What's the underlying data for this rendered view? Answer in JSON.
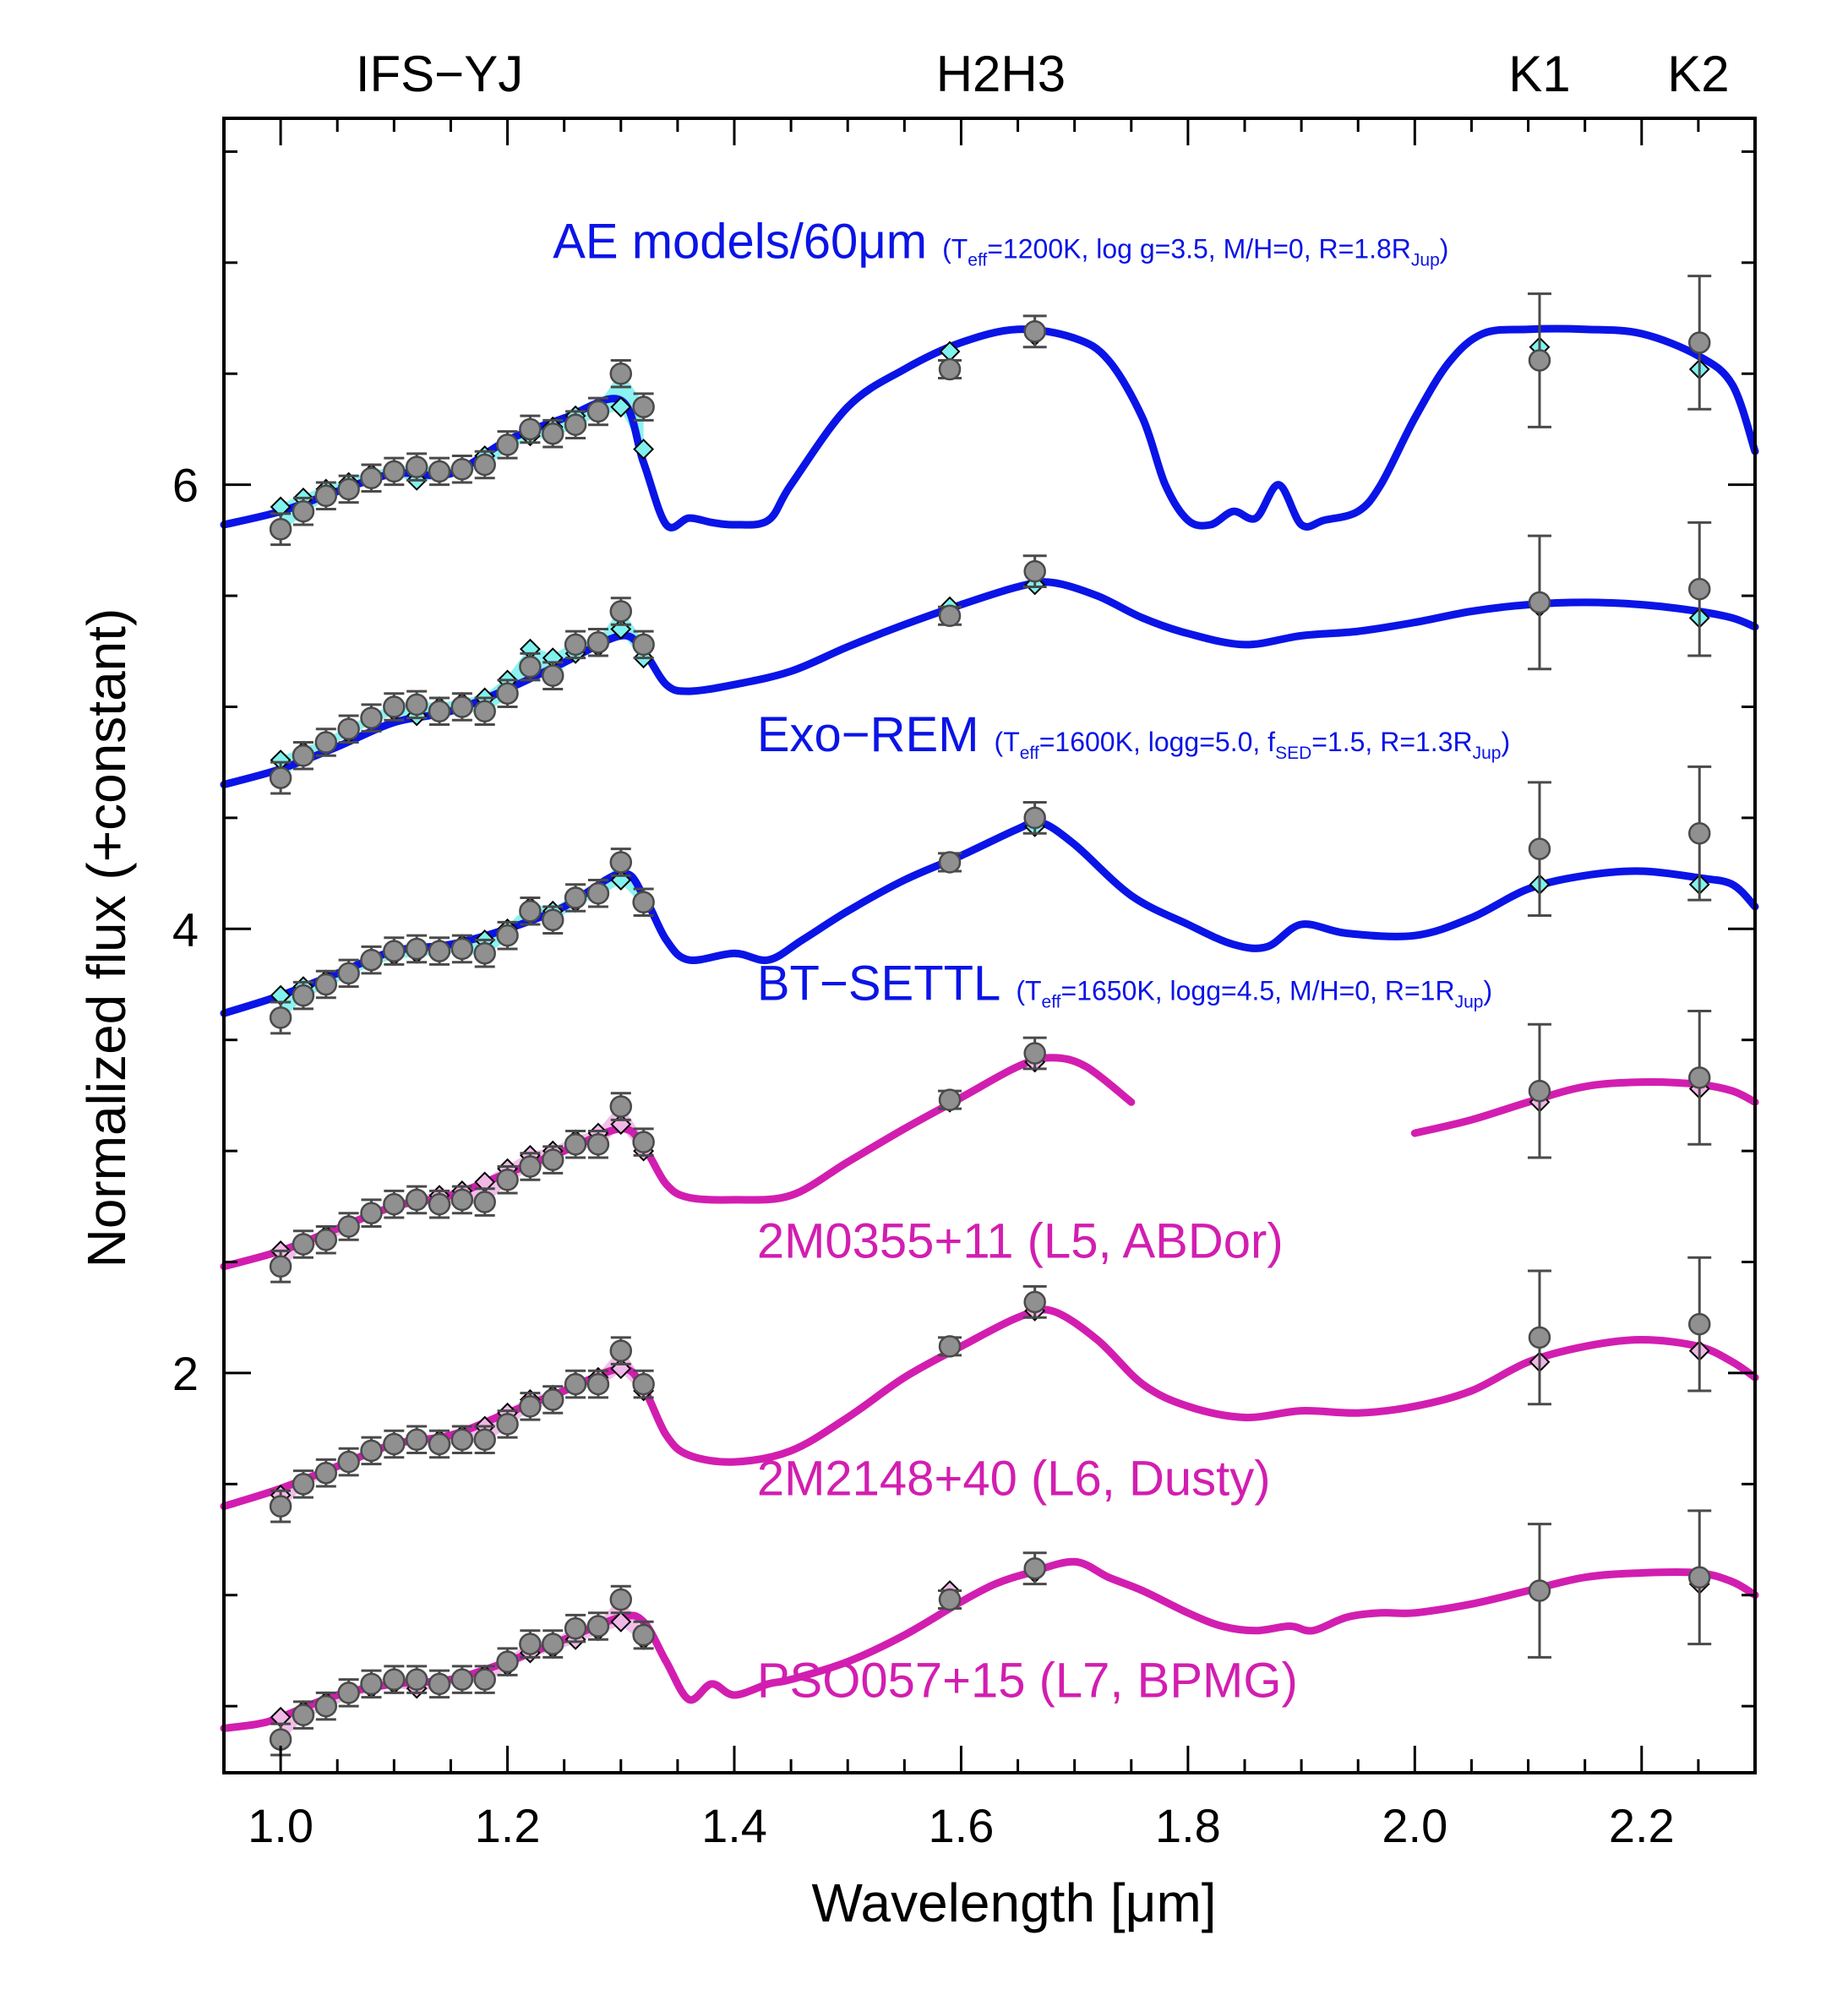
{
  "chart_data": {
    "type": "line",
    "title": "",
    "xlabel": "Wavelength [μm]",
    "ylabel": "Normalized flux (+constant)",
    "xlim": [
      0.95,
      2.3
    ],
    "ylim": [
      0.2,
      7.65
    ],
    "xticks": [
      1.0,
      1.2,
      1.4,
      1.6,
      1.8,
      2.0,
      2.2
    ],
    "xtick_labels": [
      "1.0",
      "1.2",
      "1.4",
      "1.6",
      "1.8",
      "2.0",
      "2.2"
    ],
    "yticks": [
      2,
      4,
      6
    ],
    "ytick_labels": [
      "2",
      "4",
      "6"
    ],
    "grid": false,
    "band_labels": [
      {
        "text": "IFS−YJ",
        "x": 1.14
      },
      {
        "text": "H2H3",
        "x": 1.635
      },
      {
        "text": "K1",
        "x": 2.11
      },
      {
        "text": "K2",
        "x": 2.25
      }
    ],
    "colors": {
      "model": "#0a14e6",
      "template": "#d21eb0",
      "photometry": "#909090",
      "fill_model": "#7ff2ee",
      "fill_template": "#f0b8e6"
    },
    "photometry_x": [
      2.11,
      2.251
    ],
    "series": [
      {
        "name_text": "AE models/60μm",
        "params": [
          {
            "text": "(T",
            "sub": false
          },
          {
            "text": "eff",
            "sub": true
          },
          {
            "text": "=1200K, log g=3.5, M/H=0, R=1.8R",
            "sub": false
          },
          {
            "text": "Jup",
            "sub": true
          },
          {
            "text": ")",
            "sub": false
          }
        ],
        "color": "#0a14e6",
        "label_pos": [
          1.24,
          7.02
        ],
        "x": [
          0.95,
          1.0,
          1.05,
          1.1,
          1.15,
          1.2,
          1.25,
          1.3,
          1.32,
          1.34,
          1.36,
          1.38,
          1.4,
          1.43,
          1.45,
          1.5,
          1.55,
          1.6,
          1.65,
          1.7,
          1.73,
          1.76,
          1.78,
          1.8,
          1.82,
          1.84,
          1.86,
          1.88,
          1.9,
          1.92,
          1.95,
          1.97,
          2.0,
          2.03,
          2.06,
          2.1,
          2.15,
          2.2,
          2.25,
          2.28,
          2.3
        ],
        "y": [
          5.82,
          5.88,
          5.97,
          6.05,
          6.05,
          6.2,
          6.3,
          6.38,
          6.1,
          5.82,
          5.85,
          5.83,
          5.82,
          5.84,
          6.0,
          6.35,
          6.52,
          6.64,
          6.7,
          6.66,
          6.56,
          6.3,
          6.0,
          5.84,
          5.82,
          5.88,
          5.85,
          6.0,
          5.82,
          5.84,
          5.88,
          6.0,
          6.3,
          6.55,
          6.68,
          6.7,
          6.7,
          6.68,
          6.58,
          6.45,
          6.15
        ],
        "mx": [
          1.0,
          1.02,
          1.04,
          1.06,
          1.08,
          1.1,
          1.12,
          1.14,
          1.16,
          1.18,
          1.2,
          1.22,
          1.24,
          1.26,
          1.28,
          1.3,
          1.32,
          1.59,
          1.665,
          2.11,
          2.251
        ],
        "my": [
          5.9,
          5.94,
          5.98,
          6.01,
          6.05,
          6.06,
          6.02,
          6.05,
          6.07,
          6.13,
          6.17,
          6.22,
          6.26,
          6.31,
          6.34,
          6.35,
          6.16,
          6.6,
          6.67,
          6.62,
          6.52
        ],
        "dy": [
          5.8,
          5.88,
          5.95,
          5.98,
          6.03,
          6.06,
          6.08,
          6.06,
          6.07,
          6.09,
          6.18,
          6.25,
          6.23,
          6.27,
          6.33,
          6.5,
          6.35,
          6.52,
          6.69,
          6.56,
          6.64
        ],
        "dyerr": [
          0.07,
          0.06,
          0.06,
          0.06,
          0.06,
          0.06,
          0.06,
          0.06,
          0.06,
          0.06,
          0.06,
          0.06,
          0.06,
          0.06,
          0.06,
          0.06,
          0.06,
          0.04,
          0.07,
          0.3,
          0.3
        ]
      },
      {
        "name_text": "Exo−REM",
        "params": [
          {
            "text": "(T",
            "sub": false
          },
          {
            "text": "eff",
            "sub": true
          },
          {
            "text": "=1600K, logg=5.0, f",
            "sub": false
          },
          {
            "text": "SED",
            "sub": true
          },
          {
            "text": "=1.5, R=1.3R",
            "sub": false
          },
          {
            "text": "Jup",
            "sub": true
          },
          {
            "text": ")",
            "sub": false
          }
        ],
        "color": "#0a14e6",
        "label_pos": [
          1.42,
          4.8
        ],
        "x": [
          0.95,
          1.0,
          1.05,
          1.1,
          1.15,
          1.2,
          1.25,
          1.3,
          1.32,
          1.34,
          1.36,
          1.4,
          1.45,
          1.5,
          1.55,
          1.6,
          1.65,
          1.68,
          1.72,
          1.76,
          1.8,
          1.85,
          1.9,
          1.95,
          2.0,
          2.05,
          2.1,
          2.15,
          2.2,
          2.25,
          2.28,
          2.3
        ],
        "y": [
          4.65,
          4.72,
          4.82,
          4.93,
          4.98,
          5.08,
          5.2,
          5.32,
          5.25,
          5.1,
          5.07,
          5.1,
          5.16,
          5.27,
          5.37,
          5.46,
          5.54,
          5.56,
          5.5,
          5.4,
          5.33,
          5.28,
          5.32,
          5.34,
          5.38,
          5.43,
          5.46,
          5.47,
          5.46,
          5.43,
          5.4,
          5.36
        ],
        "mx": [
          1.0,
          1.02,
          1.04,
          1.06,
          1.08,
          1.1,
          1.12,
          1.14,
          1.16,
          1.18,
          1.2,
          1.22,
          1.24,
          1.26,
          1.28,
          1.3,
          1.32,
          1.59,
          1.665,
          2.11,
          2.251
        ],
        "my": [
          4.76,
          4.8,
          4.84,
          4.88,
          4.94,
          4.98,
          4.96,
          5.0,
          5.02,
          5.04,
          5.12,
          5.26,
          5.22,
          5.24,
          5.27,
          5.35,
          5.22,
          5.45,
          5.55,
          5.45,
          5.4
        ],
        "dy": [
          4.68,
          4.78,
          4.84,
          4.9,
          4.95,
          5.0,
          5.01,
          4.98,
          5.0,
          4.98,
          5.06,
          5.18,
          5.14,
          5.28,
          5.29,
          5.43,
          5.28,
          5.41,
          5.61,
          5.47,
          5.53
        ],
        "dyerr": [
          0.07,
          0.06,
          0.06,
          0.06,
          0.06,
          0.06,
          0.06,
          0.06,
          0.06,
          0.06,
          0.06,
          0.06,
          0.06,
          0.06,
          0.06,
          0.06,
          0.06,
          0.04,
          0.07,
          0.3,
          0.3
        ]
      },
      {
        "name_text": "BT−SETTL",
        "params": [
          {
            "text": "(T",
            "sub": false
          },
          {
            "text": "eff",
            "sub": true
          },
          {
            "text": "=1650K, logg=4.5, M/H=0, R=1R",
            "sub": false
          },
          {
            "text": "Jup",
            "sub": true
          },
          {
            "text": ")",
            "sub": false
          }
        ],
        "color": "#0a14e6",
        "label_pos": [
          1.42,
          3.68
        ],
        "x": [
          0.95,
          1.0,
          1.05,
          1.1,
          1.15,
          1.2,
          1.25,
          1.3,
          1.32,
          1.34,
          1.36,
          1.4,
          1.43,
          1.46,
          1.5,
          1.55,
          1.6,
          1.65,
          1.67,
          1.7,
          1.75,
          1.8,
          1.84,
          1.87,
          1.9,
          1.94,
          2.0,
          2.05,
          2.1,
          2.15,
          2.2,
          2.25,
          2.28,
          2.3
        ],
        "y": [
          3.62,
          3.7,
          3.8,
          3.9,
          3.93,
          4.0,
          4.1,
          4.25,
          4.15,
          3.95,
          3.86,
          3.89,
          3.86,
          3.95,
          4.08,
          4.22,
          4.33,
          4.45,
          4.48,
          4.38,
          4.15,
          4.02,
          3.93,
          3.92,
          4.02,
          3.98,
          3.97,
          4.05,
          4.18,
          4.24,
          4.26,
          4.23,
          4.2,
          4.1
        ],
        "mx": [
          1.0,
          1.02,
          1.04,
          1.06,
          1.08,
          1.1,
          1.12,
          1.14,
          1.16,
          1.18,
          1.2,
          1.22,
          1.24,
          1.26,
          1.28,
          1.3,
          1.32,
          1.59,
          1.665,
          2.11,
          2.251
        ],
        "my": [
          3.7,
          3.74,
          3.77,
          3.8,
          3.85,
          3.88,
          3.89,
          3.91,
          3.93,
          3.95,
          4.0,
          4.1,
          4.08,
          4.12,
          4.16,
          4.22,
          4.12,
          4.3,
          4.46,
          4.2,
          4.2
        ],
        "dy": [
          3.6,
          3.7,
          3.75,
          3.8,
          3.86,
          3.9,
          3.91,
          3.9,
          3.91,
          3.89,
          3.97,
          4.08,
          4.04,
          4.14,
          4.16,
          4.3,
          4.12,
          4.3,
          4.5,
          4.36,
          4.43
        ],
        "dyerr": [
          0.07,
          0.06,
          0.06,
          0.06,
          0.06,
          0.06,
          0.06,
          0.06,
          0.06,
          0.06,
          0.06,
          0.06,
          0.06,
          0.06,
          0.06,
          0.06,
          0.06,
          0.04,
          0.07,
          0.3,
          0.3
        ]
      },
      {
        "name_text": "2M0355+11 (L5, ABDor)",
        "params": [],
        "color": "#d21eb0",
        "label_pos": [
          1.42,
          2.52
        ],
        "gap": [
          1.75,
          2.0
        ],
        "x": [
          0.95,
          1.0,
          1.05,
          1.1,
          1.15,
          1.2,
          1.25,
          1.3,
          1.32,
          1.34,
          1.36,
          1.4,
          1.45,
          1.5,
          1.55,
          1.6,
          1.65,
          1.68,
          1.71,
          1.75,
          2.0,
          2.05,
          2.1,
          2.15,
          2.2,
          2.25,
          2.28,
          2.3
        ],
        "y": [
          2.48,
          2.55,
          2.65,
          2.75,
          2.8,
          2.9,
          3.0,
          3.1,
          3.02,
          2.85,
          2.79,
          2.78,
          2.8,
          2.95,
          3.1,
          3.24,
          3.38,
          3.42,
          3.38,
          3.22,
          3.08,
          3.14,
          3.22,
          3.29,
          3.31,
          3.3,
          3.27,
          3.22
        ],
        "mx": [
          1.0,
          1.02,
          1.04,
          1.06,
          1.08,
          1.1,
          1.12,
          1.14,
          1.16,
          1.18,
          1.2,
          1.22,
          1.24,
          1.26,
          1.28,
          1.3,
          1.32,
          1.59,
          1.665,
          2.11,
          2.251
        ],
        "my": [
          2.55,
          2.58,
          2.62,
          2.66,
          2.72,
          2.76,
          2.78,
          2.8,
          2.82,
          2.86,
          2.92,
          2.98,
          3.0,
          3.05,
          3.08,
          3.12,
          3.0,
          3.22,
          3.4,
          3.22,
          3.28
        ],
        "dy": [
          2.48,
          2.58,
          2.6,
          2.66,
          2.72,
          2.76,
          2.78,
          2.76,
          2.78,
          2.77,
          2.87,
          2.93,
          2.96,
          3.03,
          3.03,
          3.2,
          3.04,
          3.23,
          3.44,
          3.27,
          3.33
        ],
        "dyerr": [
          0.07,
          0.06,
          0.06,
          0.06,
          0.06,
          0.06,
          0.06,
          0.06,
          0.06,
          0.06,
          0.06,
          0.06,
          0.06,
          0.06,
          0.06,
          0.06,
          0.06,
          0.04,
          0.07,
          0.3,
          0.3
        ]
      },
      {
        "name_text": "2M2148+40 (L6, Dusty)",
        "params": [],
        "color": "#d21eb0",
        "label_pos": [
          1.42,
          1.45
        ],
        "x": [
          0.95,
          1.0,
          1.05,
          1.1,
          1.15,
          1.2,
          1.25,
          1.3,
          1.32,
          1.34,
          1.36,
          1.4,
          1.45,
          1.5,
          1.55,
          1.6,
          1.65,
          1.68,
          1.72,
          1.76,
          1.8,
          1.85,
          1.9,
          1.95,
          2.0,
          2.05,
          2.1,
          2.15,
          2.2,
          2.25,
          2.28,
          2.3
        ],
        "y": [
          1.4,
          1.48,
          1.58,
          1.68,
          1.72,
          1.82,
          1.92,
          2.02,
          1.93,
          1.72,
          1.63,
          1.6,
          1.65,
          1.8,
          1.98,
          2.12,
          2.25,
          2.28,
          2.15,
          1.95,
          1.85,
          1.8,
          1.83,
          1.82,
          1.85,
          1.92,
          2.05,
          2.12,
          2.15,
          2.12,
          2.05,
          1.98
        ],
        "mx": [
          1.0,
          1.02,
          1.04,
          1.06,
          1.08,
          1.1,
          1.12,
          1.14,
          1.16,
          1.18,
          1.2,
          1.22,
          1.24,
          1.26,
          1.28,
          1.3,
          1.32,
          1.59,
          1.665,
          2.11,
          2.251
        ],
        "my": [
          1.45,
          1.5,
          1.55,
          1.6,
          1.64,
          1.68,
          1.7,
          1.7,
          1.72,
          1.76,
          1.82,
          1.88,
          1.9,
          1.96,
          1.98,
          2.02,
          1.92,
          2.12,
          2.28,
          2.05,
          2.1
        ],
        "dy": [
          1.4,
          1.5,
          1.55,
          1.6,
          1.65,
          1.68,
          1.7,
          1.68,
          1.7,
          1.7,
          1.77,
          1.85,
          1.88,
          1.95,
          1.95,
          2.1,
          1.95,
          2.12,
          2.32,
          2.16,
          2.22
        ],
        "dyerr": [
          0.07,
          0.06,
          0.06,
          0.06,
          0.06,
          0.06,
          0.06,
          0.06,
          0.06,
          0.06,
          0.06,
          0.06,
          0.06,
          0.06,
          0.06,
          0.06,
          0.06,
          0.04,
          0.07,
          0.3,
          0.3
        ]
      },
      {
        "name_text": "PSO057+15 (L7, BPMG)",
        "params": [],
        "color": "#d21eb0",
        "label_pos": [
          1.42,
          0.54
        ],
        "x": [
          0.95,
          0.98,
          1.0,
          1.05,
          1.1,
          1.15,
          1.2,
          1.25,
          1.3,
          1.32,
          1.34,
          1.36,
          1.38,
          1.4,
          1.43,
          1.45,
          1.5,
          1.55,
          1.6,
          1.63,
          1.66,
          1.7,
          1.73,
          1.76,
          1.8,
          1.83,
          1.86,
          1.89,
          1.91,
          1.94,
          1.97,
          2.0,
          2.05,
          2.1,
          2.15,
          2.2,
          2.25,
          2.28,
          2.3
        ],
        "y": [
          0.4,
          0.42,
          0.45,
          0.55,
          0.6,
          0.62,
          0.7,
          0.8,
          0.9,
          0.88,
          0.7,
          0.53,
          0.6,
          0.55,
          0.6,
          0.62,
          0.7,
          0.82,
          0.97,
          1.05,
          1.1,
          1.15,
          1.08,
          1.02,
          0.92,
          0.86,
          0.84,
          0.86,
          0.84,
          0.9,
          0.92,
          0.92,
          0.96,
          1.02,
          1.08,
          1.1,
          1.1,
          1.06,
          1.0
        ],
        "mx": [
          1.0,
          1.02,
          1.04,
          1.06,
          1.08,
          1.1,
          1.12,
          1.14,
          1.16,
          1.18,
          1.2,
          1.22,
          1.24,
          1.26,
          1.28,
          1.3,
          1.32,
          1.59,
          1.665,
          2.11,
          2.251
        ],
        "my": [
          0.45,
          0.48,
          0.52,
          0.55,
          0.58,
          0.6,
          0.58,
          0.6,
          0.62,
          0.64,
          0.68,
          0.74,
          0.76,
          0.8,
          0.84,
          0.88,
          0.8,
          1.02,
          1.1,
          1.02,
          1.05
        ],
        "dy": [
          0.35,
          0.46,
          0.5,
          0.56,
          0.6,
          0.62,
          0.62,
          0.6,
          0.62,
          0.62,
          0.7,
          0.78,
          0.78,
          0.85,
          0.86,
          0.98,
          0.82,
          0.98,
          1.12,
          1.02,
          1.08
        ],
        "dyerr": [
          0.07,
          0.06,
          0.06,
          0.06,
          0.06,
          0.06,
          0.06,
          0.06,
          0.06,
          0.06,
          0.06,
          0.06,
          0.06,
          0.06,
          0.06,
          0.06,
          0.06,
          0.04,
          0.07,
          0.3,
          0.3
        ]
      }
    ]
  }
}
